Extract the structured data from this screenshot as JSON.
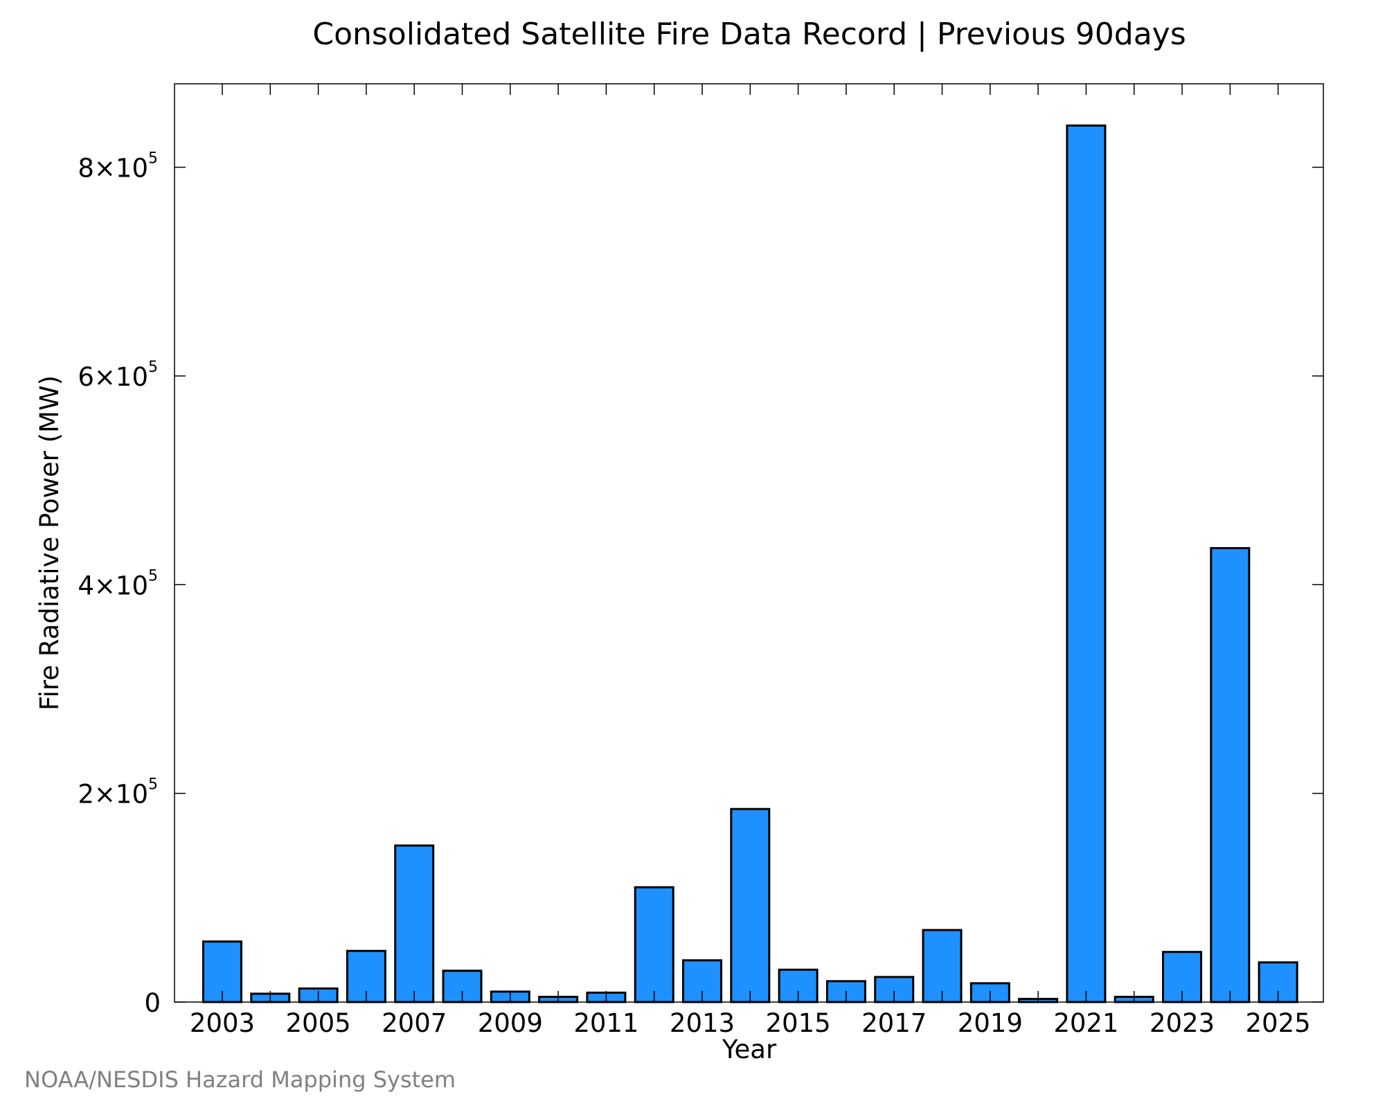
{
  "chart_data": {
    "type": "bar",
    "title": "Consolidated Satellite Fire Data Record | Previous 90days",
    "xlabel": "Year",
    "ylabel": "Fire Radiative Power (MW)",
    "categories": [
      "2003",
      "2004",
      "2005",
      "2006",
      "2007",
      "2008",
      "2009",
      "2010",
      "2011",
      "2012",
      "2013",
      "2014",
      "2015",
      "2016",
      "2017",
      "2018",
      "2019",
      "2020",
      "2021",
      "2022",
      "2023",
      "2024",
      "2025"
    ],
    "values": [
      58000,
      8000,
      13000,
      49000,
      150000,
      30000,
      10000,
      5000,
      9000,
      110000,
      40000,
      185000,
      31000,
      20000,
      24000,
      69000,
      18000,
      3000,
      840000,
      5000,
      48000,
      435000,
      38000
    ],
    "xticks": [
      {
        "year": "2003",
        "label": "2003"
      },
      {
        "year": "2005",
        "label": "2005"
      },
      {
        "year": "2007",
        "label": "2007"
      },
      {
        "year": "2009",
        "label": "2009"
      },
      {
        "year": "2011",
        "label": "2011"
      },
      {
        "year": "2013",
        "label": "2013"
      },
      {
        "year": "2015",
        "label": "2015"
      },
      {
        "year": "2017",
        "label": "2017"
      },
      {
        "year": "2019",
        "label": "2019"
      },
      {
        "year": "2021",
        "label": "2021"
      },
      {
        "year": "2023",
        "label": "2023"
      },
      {
        "year": "2025",
        "label": "2025"
      }
    ],
    "yticks": [
      {
        "value": 0,
        "mantissa": "0",
        "exponent": ""
      },
      {
        "value": 200000,
        "mantissa": "2×10",
        "exponent": "5"
      },
      {
        "value": 400000,
        "mantissa": "4×10",
        "exponent": "5"
      },
      {
        "value": 600000,
        "mantissa": "6×10",
        "exponent": "5"
      },
      {
        "value": 800000,
        "mantissa": "8×10",
        "exponent": "5"
      }
    ],
    "ylim": [
      0,
      880000
    ],
    "grid": false,
    "colors": {
      "bar_fill": "#1e90ff",
      "bar_stroke": "#000000",
      "axes": "#000000"
    }
  },
  "credit": "NOAA/NESDIS Hazard Mapping System"
}
